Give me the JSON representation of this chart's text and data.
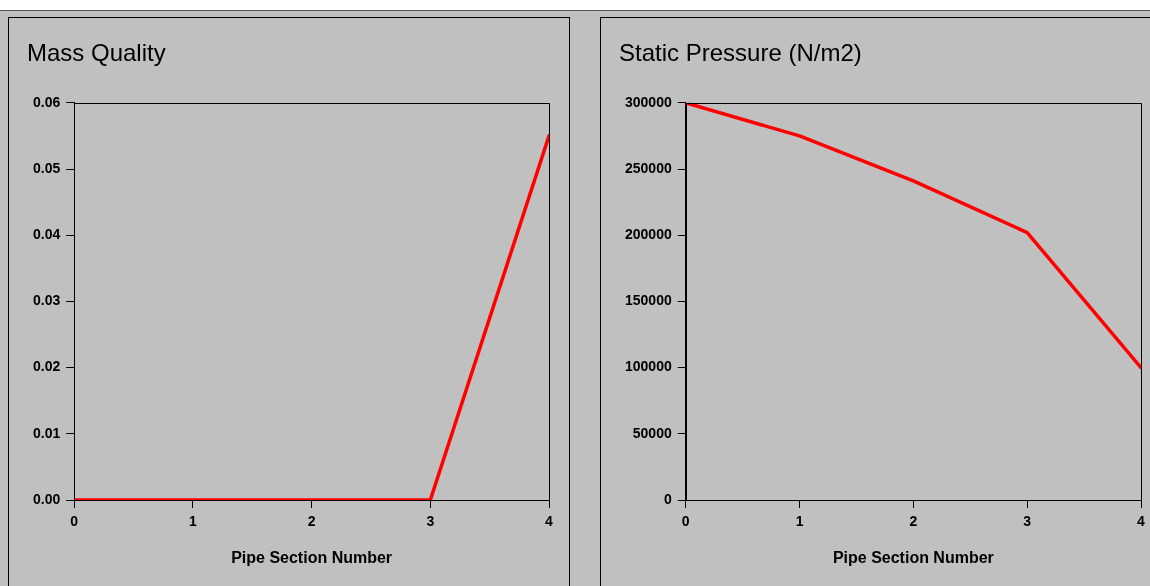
{
  "chart_data": [
    {
      "type": "line",
      "title": "Mass Quality",
      "xlabel": "Pipe Section Number",
      "x": [
        0,
        1,
        2,
        3,
        4
      ],
      "series": [
        {
          "color": "#ff0000",
          "values": [
            0,
            0,
            0,
            0,
            0.055
          ]
        }
      ],
      "xlim": [
        0,
        4
      ],
      "xticks": [
        0,
        1,
        2,
        3,
        4
      ],
      "ylim": [
        0,
        0.06
      ],
      "yticks": [
        {
          "value": 0,
          "label": "0.00"
        },
        {
          "value": 0.01,
          "label": "0.01"
        },
        {
          "value": 0.02,
          "label": "0.02"
        },
        {
          "value": 0.03,
          "label": "0.03"
        },
        {
          "value": 0.04,
          "label": "0.04"
        },
        {
          "value": 0.05,
          "label": "0.05"
        },
        {
          "value": 0.06,
          "label": "0.06"
        }
      ],
      "grid": false,
      "legend": false,
      "marker": "none",
      "line_style": "solid"
    },
    {
      "type": "line",
      "title": "Static Pressure (N/m2)",
      "xlabel": "Pipe Section Number",
      "x": [
        0,
        1,
        2,
        3,
        4
      ],
      "series": [
        {
          "color": "#ff0000",
          "values": [
            300000,
            275000,
            241000,
            202000,
            100000
          ]
        }
      ],
      "xlim": [
        0,
        4
      ],
      "xticks": [
        0,
        1,
        2,
        3,
        4
      ],
      "ylim": [
        0,
        300000
      ],
      "yticks": [
        0,
        50000,
        100000,
        150000,
        200000,
        250000,
        300000
      ],
      "grid": false,
      "legend": false,
      "marker": "none",
      "line_style": "solid"
    }
  ]
}
